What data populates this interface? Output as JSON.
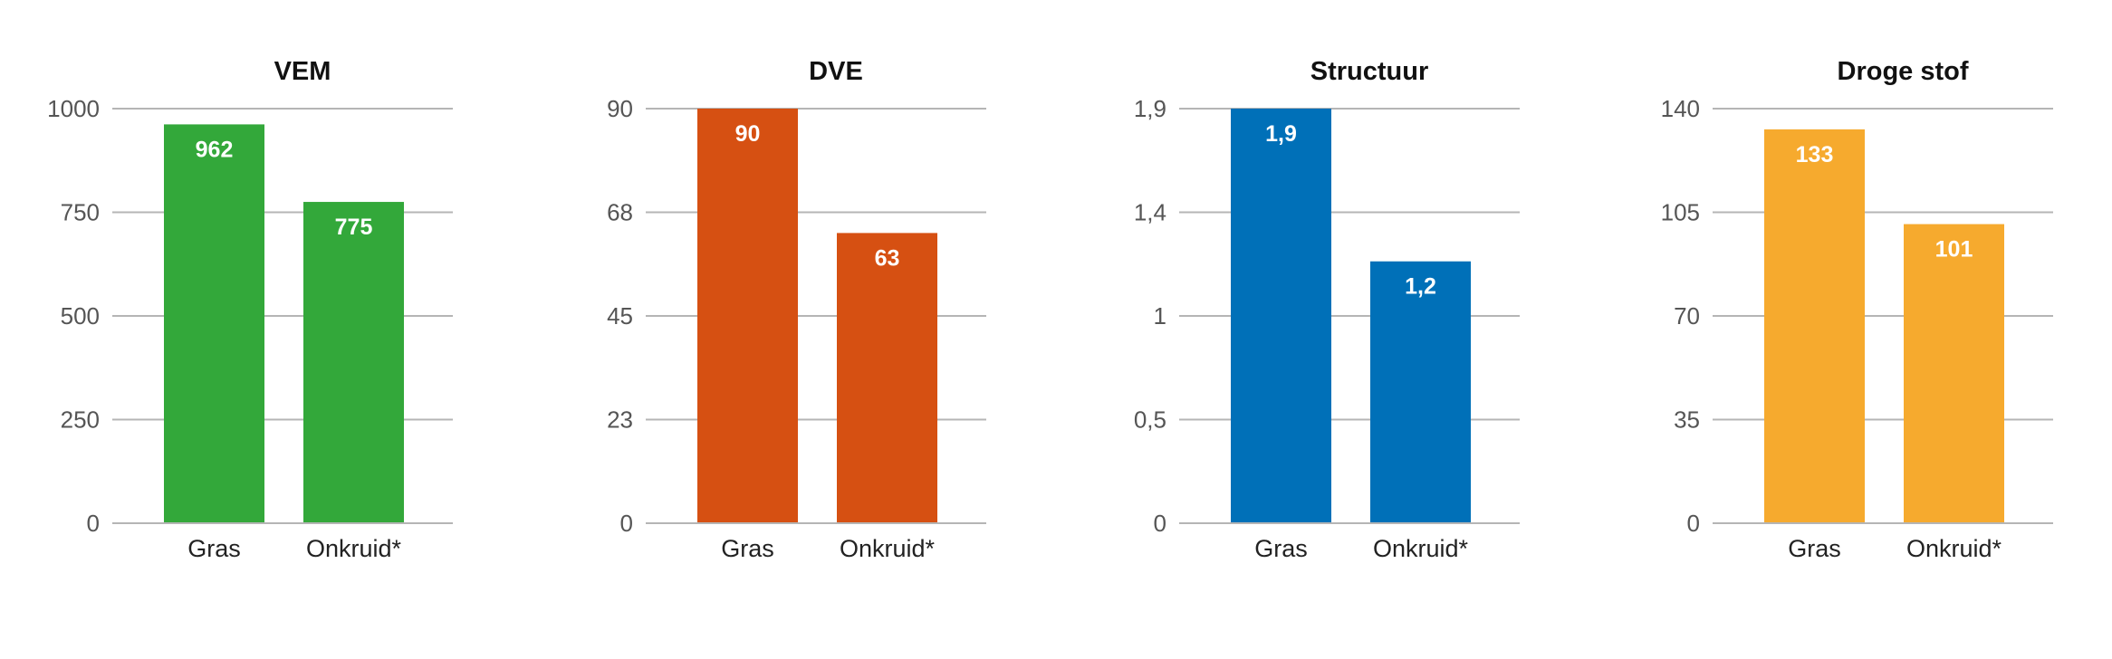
{
  "chart_data": [
    {
      "type": "bar",
      "title": "VEM",
      "categories": [
        "Gras",
        "Onkruid*"
      ],
      "values": [
        962,
        775
      ],
      "value_labels": [
        "962",
        "775"
      ],
      "yticks": [
        0,
        250,
        500,
        750,
        1000
      ],
      "ytick_labels": [
        "0",
        "250",
        "500",
        "750",
        "1000"
      ],
      "ylim": [
        0,
        1000
      ],
      "color": "#33a83a",
      "grid": true
    },
    {
      "type": "bar",
      "title": "DVE",
      "categories": [
        "Gras",
        "Onkruid*"
      ],
      "values": [
        90,
        63
      ],
      "value_labels": [
        "90",
        "63"
      ],
      "yticks": [
        0,
        22.5,
        45,
        67.5,
        90
      ],
      "ytick_labels": [
        "0",
        "23",
        "45",
        "68",
        "90"
      ],
      "ylim": [
        0,
        90
      ],
      "color": "#d65012",
      "grid": true
    },
    {
      "type": "bar",
      "title": "Structuur",
      "categories": [
        "Gras",
        "Onkruid*"
      ],
      "values": [
        1.9,
        1.2
      ],
      "value_labels": [
        "1,9",
        "1,2"
      ],
      "yticks": [
        0,
        0.475,
        0.95,
        1.425,
        1.9
      ],
      "ytick_labels": [
        "0",
        "0,5",
        "1",
        "1,4",
        "1,9"
      ],
      "ylim": [
        0,
        1.9
      ],
      "color": "#0070b8",
      "grid": true
    },
    {
      "type": "bar",
      "title": "Droge stof",
      "categories": [
        "Gras",
        "Onkruid*"
      ],
      "values": [
        133,
        101
      ],
      "value_labels": [
        "133",
        "101"
      ],
      "yticks": [
        0,
        35,
        70,
        105,
        140
      ],
      "ytick_labels": [
        "0",
        "35",
        "70",
        "105",
        "140"
      ],
      "ylim": [
        0,
        140
      ],
      "color": "#f6aa2e",
      "grid": true
    }
  ]
}
